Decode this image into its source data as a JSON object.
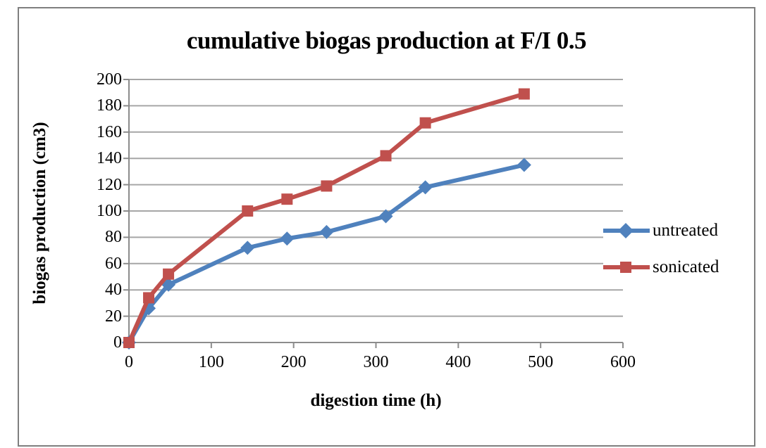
{
  "chart_data": {
    "type": "line",
    "title": "cumulative biogas production at F/I 0.5",
    "xlabel": "digestion time (h)",
    "ylabel": "biogas production (cm3)",
    "x": [
      0,
      24,
      48,
      144,
      192,
      240,
      312,
      360,
      480
    ],
    "series": [
      {
        "name": "untreated",
        "color": "#4F81BD",
        "marker": "diamond",
        "values": [
          0,
          26,
          44,
          72,
          79,
          84,
          96,
          118,
          135
        ]
      },
      {
        "name": "sonicated",
        "color": "#C0504D",
        "marker": "square",
        "values": [
          0,
          34,
          52,
          100,
          109,
          119,
          142,
          167,
          189
        ]
      }
    ],
    "xlim": [
      0,
      600
    ],
    "ylim": [
      0,
      200
    ],
    "xtick_step": 100,
    "ytick_step": 20,
    "grid": true,
    "legend_position": "right-middle",
    "grid_color": "#A6A6A6",
    "axis_color": "#8C8C8C",
    "frame_color": "#7F7F7F",
    "background_color": "#FFFFFF",
    "text_color": "#000000"
  }
}
